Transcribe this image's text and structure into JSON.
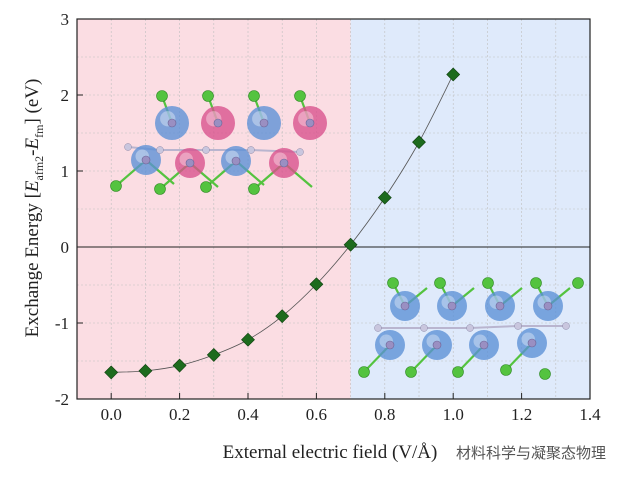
{
  "chart_data": {
    "type": "scatter",
    "xlabel": "External electric field (V/Å)",
    "ylabel_main": "Exchange Energy [",
    "ylabel_sym1": "E",
    "ylabel_sub1": "afm2",
    "ylabel_dash": "-",
    "ylabel_sym2": "E",
    "ylabel_sub2": "fm",
    "ylabel_unit": "] (eV)",
    "xlim": [
      -0.1,
      1.4
    ],
    "ylim": [
      -2,
      3
    ],
    "xticks": [
      0.0,
      0.2,
      0.4,
      0.6,
      0.8,
      1.0,
      1.2,
      1.4
    ],
    "xtick_labels": [
      "0.0",
      "0.2",
      "0.4",
      "0.6",
      "0.8",
      "1.0",
      "1.2",
      "1.4"
    ],
    "yticks": [
      -2,
      -1,
      0,
      1,
      2,
      3
    ],
    "ytick_labels": [
      "-2",
      "-1",
      "0",
      "1",
      "2",
      "3"
    ],
    "grid": true,
    "regions": [
      {
        "from": -0.1,
        "to": 0.7,
        "color": "#fbdde3"
      },
      {
        "from": 0.7,
        "to": 1.4,
        "color": "#dfeafb"
      }
    ],
    "marker_color": "#1d6b1d",
    "line_color": "#555555",
    "series": [
      {
        "x": [
          0.0,
          0.1,
          0.2,
          0.3,
          0.4,
          0.5,
          0.6,
          0.7,
          0.8,
          0.9,
          1.0
        ],
        "y": [
          -1.65,
          -1.63,
          -1.56,
          -1.42,
          -1.22,
          -0.91,
          -0.49,
          0.03,
          0.65,
          1.38,
          2.27
        ]
      }
    ]
  },
  "watermark": "材料科学与凝聚态物理",
  "colors": {
    "spin_up": "#5b8fd6",
    "spin_down": "#d94f8c",
    "ligand_atom": "#54c33f",
    "metal_atom": "#9a8fc2"
  }
}
